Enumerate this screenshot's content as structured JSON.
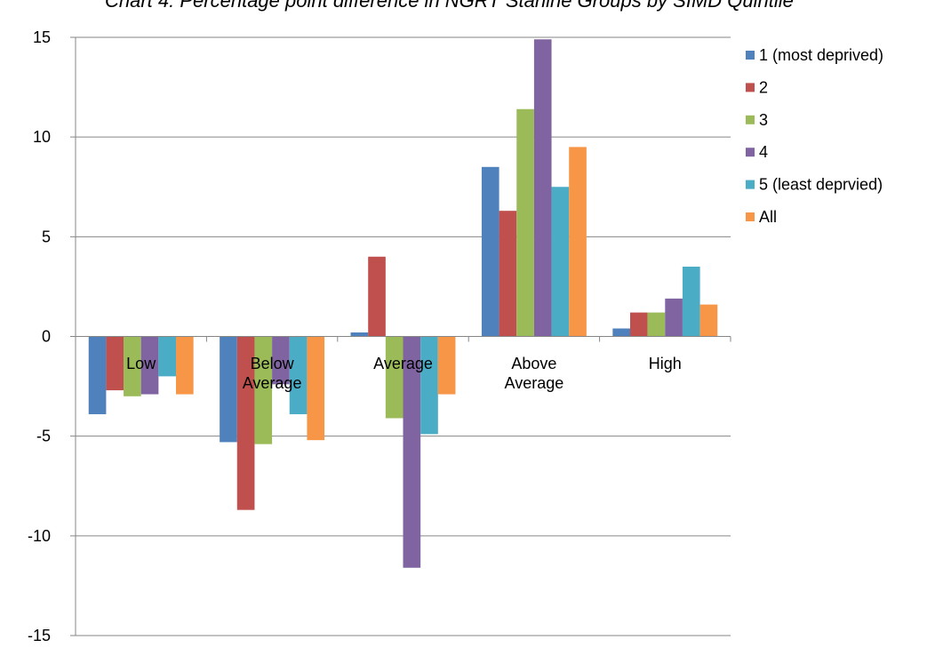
{
  "chart_data": {
    "type": "bar",
    "title": "Chart 4: Percentage point difference in NGRT Stanine Groups by SIMD Quintile",
    "categories": [
      "Low",
      "Below Average",
      "Average",
      "Above Average",
      "High"
    ],
    "series": [
      {
        "name": "1 (most deprived)",
        "color": "#4F81BD",
        "values": [
          -3.9,
          -5.3,
          0.2,
          8.5,
          0.4
        ]
      },
      {
        "name": "2",
        "color": "#C0504D",
        "values": [
          -2.7,
          -8.7,
          4.0,
          6.3,
          1.2
        ]
      },
      {
        "name": "3",
        "color": "#9BBB59",
        "values": [
          -3.0,
          -5.4,
          -4.1,
          11.4,
          1.2
        ]
      },
      {
        "name": "4",
        "color": "#8064A2",
        "values": [
          -2.9,
          -2.4,
          -11.6,
          14.9,
          1.9
        ]
      },
      {
        "name": "5 (least deprvied)",
        "color": "#4BACC6",
        "values": [
          -2.0,
          -3.9,
          -4.9,
          7.5,
          3.5
        ]
      },
      {
        "name": "All",
        "color": "#F79646",
        "values": [
          -2.9,
          -5.2,
          -2.9,
          9.5,
          1.6
        ]
      }
    ],
    "ylim": [
      -15,
      15
    ],
    "yticks": [
      -15,
      -10,
      -5,
      0,
      5,
      10,
      15
    ],
    "grid": true,
    "legend": "right"
  }
}
